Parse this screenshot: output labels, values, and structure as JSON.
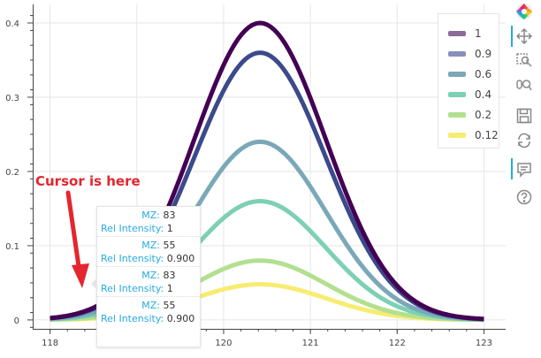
{
  "chart_data": {
    "type": "line",
    "xlim": [
      117.8,
      123.25
    ],
    "ylim": [
      -0.012,
      0.425
    ],
    "x_ticks": [
      118,
      119,
      120,
      121,
      122,
      123
    ],
    "y_ticks": [
      0,
      0.1,
      0.2,
      0.3,
      0.4
    ],
    "x_tick_labels": [
      "118",
      "119",
      "120",
      "121",
      "122",
      "123"
    ],
    "y_tick_labels": [
      "0",
      "0.1",
      "0.2",
      "0.3",
      "0.4"
    ],
    "grid": true,
    "legend_position": "top-right",
    "peak_center": 120.42,
    "peak_sigma": 0.76,
    "x_range": [
      118,
      123
    ],
    "series": [
      {
        "name": "1",
        "peak": 0.4,
        "color": "#440154"
      },
      {
        "name": "0.9",
        "peak": 0.36,
        "color": "#3b4a8b"
      },
      {
        "name": "0.6",
        "peak": 0.24,
        "color": "#7aa8b8"
      },
      {
        "name": "0.4",
        "peak": 0.16,
        "color": "#7dd0b4"
      },
      {
        "name": "0.2",
        "peak": 0.08,
        "color": "#b2e08f"
      },
      {
        "name": "0.12",
        "peak": 0.048,
        "color": "#f7ec72"
      }
    ]
  },
  "annotation": {
    "text": "Cursor is here",
    "color": "#e3262f"
  },
  "tooltip": {
    "entries": [
      {
        "mz_label": "MZ:",
        "mz": "83",
        "ri_label": "Rel Intensity:",
        "ri": "1"
      },
      {
        "mz_label": "MZ:",
        "mz": "55",
        "ri_label": "Rel Intensity:",
        "ri": "0.900"
      },
      {
        "mz_label": "MZ:",
        "mz": "83",
        "ri_label": "Rel Intensity:",
        "ri": "1"
      },
      {
        "mz_label": "MZ:",
        "mz": "55",
        "ri_label": "Rel Intensity:",
        "ri": "0.900"
      }
    ]
  },
  "toolbar": {
    "tools": [
      "bokeh-logo-icon",
      "pan-icon",
      "box-zoom-icon",
      "wheel-zoom-icon",
      "save-icon",
      "reset-icon",
      "hover-icon",
      "help-icon"
    ]
  }
}
